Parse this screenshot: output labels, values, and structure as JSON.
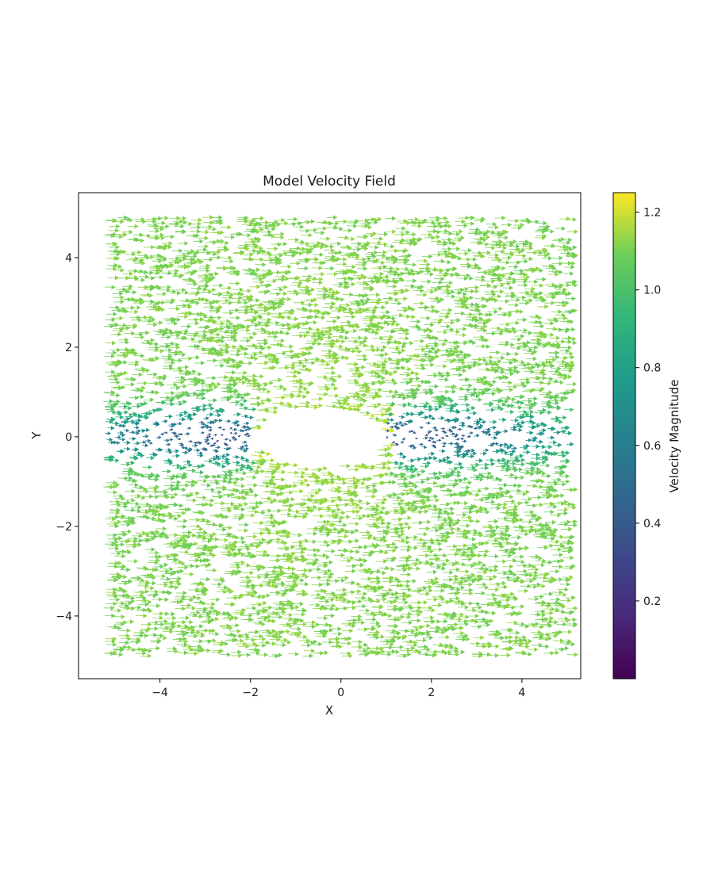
{
  "chart_data": {
    "type": "quiver",
    "title": "Model Velocity Field",
    "xlabel": "X",
    "ylabel": "Y",
    "xlim": [
      -5.8,
      5.3
    ],
    "ylim": [
      -5.4,
      5.45
    ],
    "x_ticks": [
      -4,
      -2,
      0,
      2,
      4
    ],
    "y_ticks": [
      -4,
      -2,
      0,
      2,
      4
    ],
    "x_tick_labels": [
      "−4",
      "−2",
      "0",
      "2",
      "4"
    ],
    "y_tick_labels": [
      "−4",
      "−2",
      "0",
      "2",
      "4"
    ],
    "domain": {
      "x": [
        -5.25,
        5.0
      ],
      "y": [
        -4.9,
        4.9
      ]
    },
    "obstacle": {
      "shape": "ellipse",
      "center": [
        -0.55,
        0.0
      ],
      "semi_axes": [
        1.5,
        0.65
      ]
    },
    "freestream_speed": 1.0,
    "grid": false,
    "colormap": "viridis",
    "colorbar": {
      "label": "Velocity Magnitude",
      "range": [
        0.0,
        1.25
      ],
      "ticks": [
        0.2,
        0.4,
        0.6,
        0.8,
        1.0,
        1.2
      ],
      "tick_labels": [
        "0.2",
        "0.4",
        "0.6",
        "0.8",
        "1.0",
        "1.2"
      ]
    }
  }
}
